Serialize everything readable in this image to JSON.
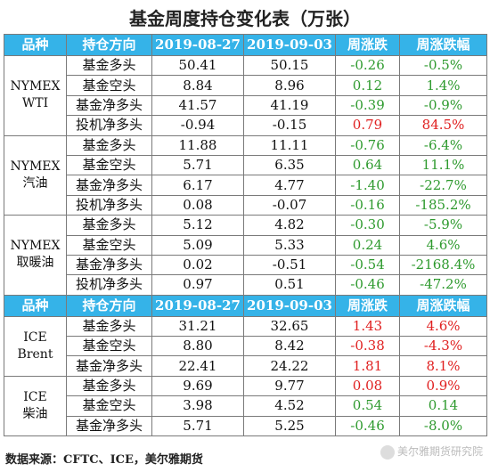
{
  "title": "基金周度持仓变化表（万张）",
  "header1": {
    "c1": "品种",
    "c2": "持仓方向",
    "c3": "2019-08-27",
    "c4": "2019-09-03",
    "c5": "周涨跌",
    "c6": "周涨跌幅"
  },
  "header2": {
    "c1": "品种",
    "c2": "持仓方向",
    "c3": "2019-08-27",
    "c4": "2019-09-03",
    "c5": "周涨跌",
    "c6": "周涨跌幅"
  },
  "groups": [
    {
      "name1": "NYMEX",
      "name2": "WTI",
      "rows": [
        {
          "pos": "基金多头",
          "a": "50.41",
          "b": "50.15",
          "chg": "-0.26",
          "pct": "-0.5%",
          "color": "g"
        },
        {
          "pos": "基金空头",
          "a": "8.84",
          "b": "8.96",
          "chg": "0.12",
          "pct": "1.4%",
          "color": "g"
        },
        {
          "pos": "基金净多头",
          "a": "41.57",
          "b": "41.19",
          "chg": "-0.39",
          "pct": "-0.9%",
          "color": "g"
        },
        {
          "pos": "投机净多头",
          "a": "-0.94",
          "b": "-0.15",
          "chg": "0.79",
          "pct": "84.5%",
          "color": "r"
        }
      ]
    },
    {
      "name1": "NYMEX",
      "name2": "汽油",
      "rows": [
        {
          "pos": "基金多头",
          "a": "11.88",
          "b": "11.11",
          "chg": "-0.76",
          "pct": "-6.4%",
          "color": "g"
        },
        {
          "pos": "基金空头",
          "a": "5.71",
          "b": "6.35",
          "chg": "0.64",
          "pct": "11.1%",
          "color": "g"
        },
        {
          "pos": "基金净多头",
          "a": "6.17",
          "b": "4.77",
          "chg": "-1.40",
          "pct": "-22.7%",
          "color": "g"
        },
        {
          "pos": "投机净多头",
          "a": "0.08",
          "b": "-0.07",
          "chg": "-0.16",
          "pct": "-185.2%",
          "color": "g"
        }
      ]
    },
    {
      "name1": "NYMEX",
      "name2": "取暖油",
      "rows": [
        {
          "pos": "基金多头",
          "a": "5.12",
          "b": "4.82",
          "chg": "-0.30",
          "pct": "-5.9%",
          "color": "g"
        },
        {
          "pos": "基金空头",
          "a": "5.09",
          "b": "5.33",
          "chg": "0.24",
          "pct": "4.6%",
          "color": "g"
        },
        {
          "pos": "基金净多头",
          "a": "0.02",
          "b": "-0.51",
          "chg": "-0.54",
          "pct": "-2168.4%",
          "color": "g"
        },
        {
          "pos": "投机净多头",
          "a": "0.97",
          "b": "0.51",
          "chg": "-0.46",
          "pct": "-47.2%",
          "color": "g"
        }
      ]
    },
    {
      "name1": "ICE",
      "name2": "Brent",
      "rows": [
        {
          "pos": "基金多头",
          "a": "31.21",
          "b": "32.65",
          "chg": "1.43",
          "pct": "4.6%",
          "color": "r"
        },
        {
          "pos": "基金空头",
          "a": "8.80",
          "b": "8.42",
          "chg": "-0.38",
          "pct": "-4.3%",
          "color": "r"
        },
        {
          "pos": "基金净多头",
          "a": "22.41",
          "b": "24.22",
          "chg": "1.81",
          "pct": "8.1%",
          "color": "r"
        }
      ]
    },
    {
      "name1": "ICE",
      "name2": "柴油",
      "rows": [
        {
          "pos": "基金多头",
          "a": "9.69",
          "b": "9.77",
          "chg": "0.08",
          "pct": "0.9%",
          "color": "r"
        },
        {
          "pos": "基金空头",
          "a": "3.98",
          "b": "4.52",
          "chg": "0.54",
          "pct": "0.14",
          "color": "g"
        },
        {
          "pos": "基金净多头",
          "a": "5.71",
          "b": "5.25",
          "chg": "-0.46",
          "pct": "-8.0%",
          "color": "g"
        }
      ]
    }
  ],
  "footer": "数据来源：CFTC、ICE，美尔雅期货",
  "watermark": "美尔雅期货研究院",
  "colors": {
    "header_bg": "#35b3e8",
    "up": "#e02020",
    "down": "#2e9a2e"
  }
}
